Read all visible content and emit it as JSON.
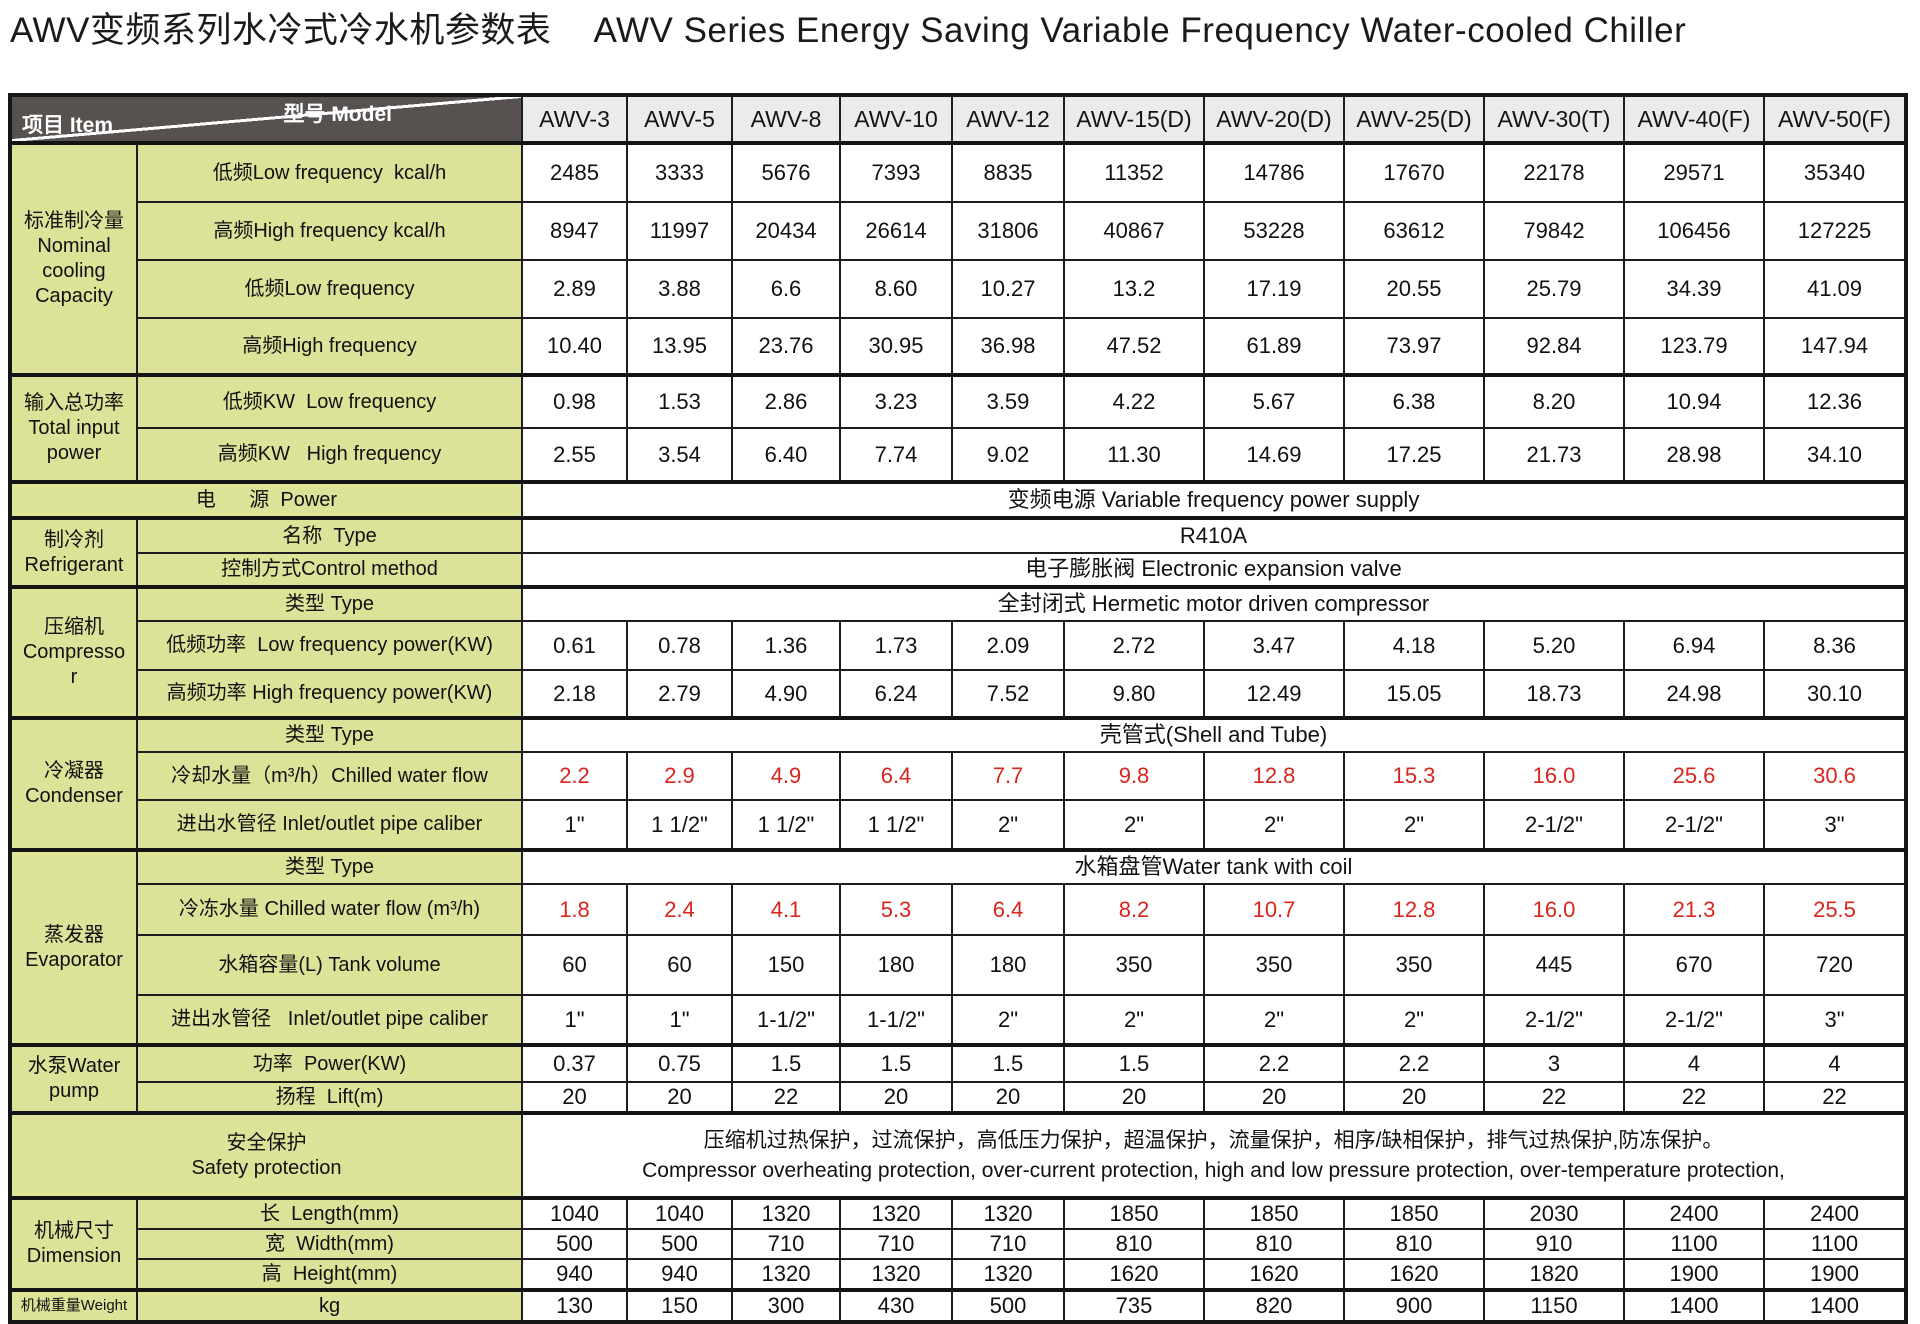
{
  "title": {
    "zh": "AWV变频系列水冷式冷水机参数表",
    "en": "AWV Series Energy Saving Variable Frequency Water-cooled Chiller"
  },
  "colors": {
    "header_dark": "#57524f",
    "model_header_bg": "#ebebeb",
    "label_bg": "#dce298",
    "red_value": "#d9251d",
    "border": "#1d1d1d"
  },
  "table": {
    "corner": {
      "model": "型号  Model",
      "item": "项目  Item"
    },
    "models": [
      "AWV-3",
      "AWV-5",
      "AWV-8",
      "AWV-10",
      "AWV-12",
      "AWV-15(D)",
      "AWV-20(D)",
      "AWV-25(D)",
      "AWV-30(T)",
      "AWV-40(F)",
      "AWV-50(F)"
    ],
    "sections": [
      {
        "group": "标准制冷量\nNominal\ncooling\nCapacity",
        "rows": [
          {
            "label": "低频Low frequency  kcal/h",
            "values": [
              "2485",
              "3333",
              "5676",
              "7393",
              "8835",
              "11352",
              "14786",
              "17670",
              "22178",
              "29571",
              "35340"
            ]
          },
          {
            "label": "高频High frequency kcal/h",
            "values": [
              "8947",
              "11997",
              "20434",
              "26614",
              "31806",
              "40867",
              "53228",
              "63612",
              "79842",
              "106456",
              "127225"
            ]
          },
          {
            "label": "低频Low frequency",
            "values": [
              "2.89",
              "3.88",
              "6.6",
              "8.60",
              "10.27",
              "13.2",
              "17.19",
              "20.55",
              "25.79",
              "34.39",
              "41.09"
            ]
          },
          {
            "label": "高频High frequency",
            "values": [
              "10.40",
              "13.95",
              "23.76",
              "30.95",
              "36.98",
              "47.52",
              "61.89",
              "73.97",
              "92.84",
              "123.79",
              "147.94"
            ]
          }
        ]
      },
      {
        "group": "输入总功率\nTotal input\npower",
        "rows": [
          {
            "label": "低频KW  Low frequency",
            "values": [
              "0.98",
              "1.53",
              "2.86",
              "3.23",
              "3.59",
              "4.22",
              "5.67",
              "6.38",
              "8.20",
              "10.94",
              "12.36"
            ]
          },
          {
            "label": "高频KW   High frequency",
            "values": [
              "2.55",
              "3.54",
              "6.40",
              "7.74",
              "9.02",
              "11.30",
              "14.69",
              "17.25",
              "21.73",
              "28.98",
              "34.10"
            ]
          }
        ]
      },
      {
        "group": null,
        "rows": [
          {
            "label": "电      源  Power",
            "span": "变频电源 Variable frequency power supply"
          }
        ]
      },
      {
        "group": "制冷剂\nRefrigerant",
        "rows": [
          {
            "label": "名称  Type",
            "span": "R410A"
          },
          {
            "label": "控制方式Control method",
            "span": "电子膨胀阀 Electronic expansion valve"
          }
        ]
      },
      {
        "group": "压缩机\nCompresso\nr",
        "rows": [
          {
            "label": "类型 Type",
            "span": "全封闭式 Hermetic motor driven compressor"
          },
          {
            "label": "低频功率  Low frequency power(KW)",
            "values": [
              "0.61",
              "0.78",
              "1.36",
              "1.73",
              "2.09",
              "2.72",
              "3.47",
              "4.18",
              "5.20",
              "6.94",
              "8.36"
            ]
          },
          {
            "label": "高频功率 High frequency power(KW)",
            "values": [
              "2.18",
              "2.79",
              "4.90",
              "6.24",
              "7.52",
              "9.80",
              "12.49",
              "15.05",
              "18.73",
              "24.98",
              "30.10"
            ]
          }
        ]
      },
      {
        "group": "冷凝器\nCondenser",
        "rows": [
          {
            "label": "类型 Type",
            "span": "壳管式(Shell and Tube)"
          },
          {
            "label": "冷却水量（m³/h）Chilled water flow",
            "red": true,
            "values": [
              "2.2",
              "2.9",
              "4.9",
              "6.4",
              "7.7",
              "9.8",
              "12.8",
              "15.3",
              "16.0",
              "25.6",
              "30.6"
            ]
          },
          {
            "label": "进出水管径 Inlet/outlet pipe caliber",
            "values": [
              "1\"",
              "1 1/2\"",
              "1 1/2\"",
              "1 1/2\"",
              "2\"",
              "2\"",
              "2\"",
              "2\"",
              "2-1/2\"",
              "2-1/2\"",
              "3\""
            ]
          }
        ]
      },
      {
        "group": "蒸发器\nEvaporator",
        "rows": [
          {
            "label": "类型 Type",
            "span": "水箱盘管Water tank with coil"
          },
          {
            "label": "冷冻水量 Chilled water flow (m³/h)",
            "red": true,
            "values": [
              "1.8",
              "2.4",
              "4.1",
              "5.3",
              "6.4",
              "8.2",
              "10.7",
              "12.8",
              "16.0",
              "21.3",
              "25.5"
            ]
          },
          {
            "label": "水箱容量(L) Tank volume",
            "values": [
              "60",
              "60",
              "150",
              "180",
              "180",
              "350",
              "350",
              "350",
              "445",
              "670",
              "720"
            ]
          },
          {
            "label": "进出水管径   Inlet/outlet pipe caliber",
            "values": [
              "1\"",
              "1\"",
              "1-1/2\"",
              "1-1/2\"",
              "2\"",
              "2\"",
              "2\"",
              "2\"",
              "2-1/2\"",
              "2-1/2\"",
              "3\""
            ]
          }
        ]
      },
      {
        "group": "水泵Water\npump",
        "rows": [
          {
            "label": "功率  Power(KW)",
            "values": [
              "0.37",
              "0.75",
              "1.5",
              "1.5",
              "1.5",
              "1.5",
              "2.2",
              "2.2",
              "3",
              "4",
              "4"
            ]
          },
          {
            "label": "扬程  Lift(m)",
            "values": [
              "20",
              "20",
              "22",
              "20",
              "20",
              "20",
              "20",
              "20",
              "22",
              "22",
              "22"
            ]
          }
        ]
      },
      {
        "group": null,
        "rows": [
          {
            "label": "安全保护\nSafety protection",
            "span": "压缩机过热保护，过流保护，高低压力保护，超温保护，流量保护，相序/缺相保护，排气过热保护,防冻保护。\nCompressor overheating protection, over-current protection, high and low pressure protection, over-temperature protection,"
          }
        ]
      },
      {
        "group": "机械尺寸\nDimension",
        "rows": [
          {
            "label": "长  Length(mm)",
            "values": [
              "1040",
              "1040",
              "1320",
              "1320",
              "1320",
              "1850",
              "1850",
              "1850",
              "2030",
              "2400",
              "2400"
            ]
          },
          {
            "label": "宽  Width(mm)",
            "values": [
              "500",
              "500",
              "710",
              "710",
              "710",
              "810",
              "810",
              "810",
              "910",
              "1100",
              "1100"
            ]
          },
          {
            "label": "高  Height(mm)",
            "values": [
              "940",
              "940",
              "1320",
              "1320",
              "1320",
              "1620",
              "1620",
              "1620",
              "1820",
              "1900",
              "1900"
            ]
          }
        ]
      },
      {
        "group": "机械重量Weight",
        "rows": [
          {
            "label": "kg",
            "values": [
              "130",
              "150",
              "300",
              "430",
              "500",
              "735",
              "820",
              "900",
              "1150",
              "1400",
              "1400"
            ]
          }
        ]
      }
    ]
  }
}
